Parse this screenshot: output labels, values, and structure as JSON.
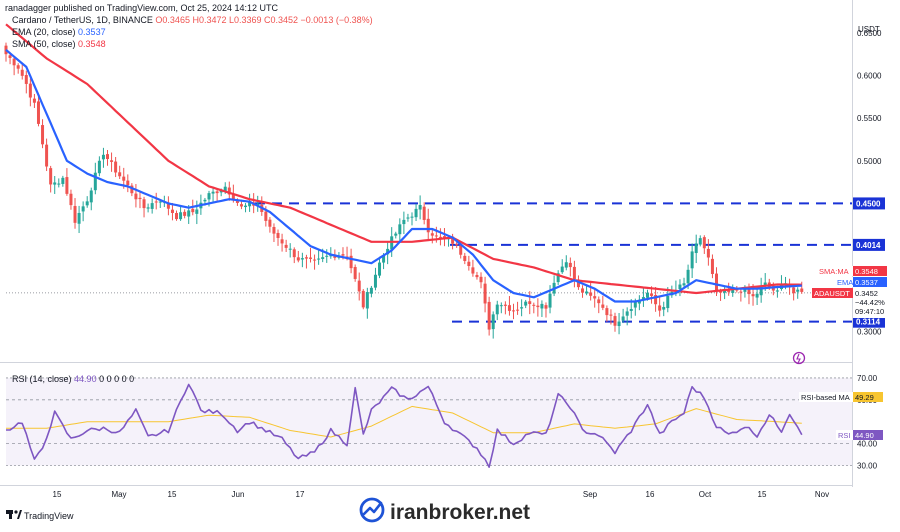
{
  "header": {
    "publisher": "ranadagger published on TradingView.com, Oct 25, 2024 14:12 UTC",
    "symbol": "Cardano / TetherUS, 1D, BINANCE",
    "ohlc": "O0.3465 H0.3472 L0.3369 C0.3452 −0.0013 (−0.38%)",
    "currency": "USDT"
  },
  "legend": {
    "ema_label": "EMA (20, close)",
    "ema_value": "0.3537",
    "sma_label": "SMA (50, close)",
    "sma_value": "0.3548",
    "rsi_label": "RSI (14, close)",
    "rsi_value": "44.90",
    "rsi_extra": "0 0 0 0 0"
  },
  "price_axis": {
    "ticks": [
      "0.6500",
      "0.6000",
      "0.5500",
      "0.5000",
      "0.3000"
    ]
  },
  "levels": [
    {
      "label": "0.4500",
      "value": 0.45
    },
    {
      "label": "0.4014",
      "value": 0.4014
    },
    {
      "label": "0.3114",
      "value": 0.3114
    }
  ],
  "tags": {
    "sma_name": "SMA:MA",
    "sma_val": "0.3548",
    "ema_name": "EMA",
    "ema_val": "0.3537",
    "pair": "ADAUSDT",
    "price": "0.3452",
    "pct": "−44.42%",
    "timer": "09:47:10"
  },
  "rsi_axis": {
    "ticks": [
      "70.00",
      "60.00",
      "40.00",
      "30.00"
    ]
  },
  "rsi_tags": {
    "ma_name": "RSI-based MA",
    "ma_val": "49.29",
    "rsi_name": "RSI",
    "rsi_val": "44.90"
  },
  "time_axis": [
    "15",
    "May",
    "15",
    "Jun",
    "17",
    "Sep",
    "16",
    "Oct",
    "15",
    "Nov"
  ],
  "footer": {
    "tv_brand": "TradingView",
    "watermark": "iranbroker.net"
  },
  "colors": {
    "up": "#26a69a",
    "down": "#ef5350",
    "ema": "#2962ff",
    "sma": "#f23645",
    "level": "#1a33d6",
    "rsi": "#7e57c2",
    "rsi_ma": "#f7c530"
  },
  "chart_data": [
    {
      "type": "candlestick",
      "title": "Cardano / TetherUS, 1D, BINANCE",
      "ylim": [
        0.27,
        0.665
      ],
      "close_anchors": [
        [
          0,
          0.625
        ],
        [
          3,
          0.61
        ],
        [
          5,
          0.59
        ],
        [
          7,
          0.565
        ],
        [
          9,
          0.52
        ],
        [
          11,
          0.47
        ],
        [
          14,
          0.48
        ],
        [
          17,
          0.43
        ],
        [
          20,
          0.455
        ],
        [
          24,
          0.51
        ],
        [
          26,
          0.495
        ],
        [
          30,
          0.47
        ],
        [
          34,
          0.445
        ],
        [
          38,
          0.455
        ],
        [
          42,
          0.435
        ],
        [
          46,
          0.44
        ],
        [
          50,
          0.46
        ],
        [
          54,
          0.47
        ],
        [
          58,
          0.445
        ],
        [
          62,
          0.45
        ],
        [
          65,
          0.42
        ],
        [
          69,
          0.4
        ],
        [
          72,
          0.385
        ],
        [
          76,
          0.38
        ],
        [
          80,
          0.39
        ],
        [
          84,
          0.39
        ],
        [
          88,
          0.33
        ],
        [
          92,
          0.38
        ],
        [
          94,
          0.4
        ],
        [
          98,
          0.43
        ],
        [
          102,
          0.445
        ],
        [
          104,
          0.42
        ],
        [
          106,
          0.41
        ],
        [
          110,
          0.405
        ],
        [
          114,
          0.38
        ],
        [
          117,
          0.355
        ],
        [
          119,
          0.305
        ],
        [
          121,
          0.335
        ],
        [
          125,
          0.325
        ],
        [
          129,
          0.335
        ],
        [
          133,
          0.33
        ],
        [
          135,
          0.36
        ],
        [
          138,
          0.385
        ],
        [
          141,
          0.35
        ],
        [
          144,
          0.34
        ],
        [
          146,
          0.335
        ],
        [
          150,
          0.31
        ],
        [
          154,
          0.33
        ],
        [
          158,
          0.345
        ],
        [
          161,
          0.325
        ],
        [
          164,
          0.345
        ],
        [
          167,
          0.355
        ],
        [
          169,
          0.39
        ],
        [
          171,
          0.41
        ],
        [
          173,
          0.385
        ],
        [
          175,
          0.345
        ],
        [
          178,
          0.345
        ],
        [
          181,
          0.35
        ],
        [
          184,
          0.34
        ],
        [
          187,
          0.355
        ],
        [
          190,
          0.345
        ],
        [
          192,
          0.36
        ],
        [
          194,
          0.345
        ],
        [
          196,
          0.345
        ]
      ],
      "ema_anchors": [
        [
          0,
          0.63
        ],
        [
          5,
          0.61
        ],
        [
          10,
          0.555
        ],
        [
          15,
          0.5
        ],
        [
          20,
          0.485
        ],
        [
          25,
          0.475
        ],
        [
          30,
          0.47
        ],
        [
          35,
          0.46
        ],
        [
          40,
          0.45
        ],
        [
          45,
          0.445
        ],
        [
          50,
          0.45
        ],
        [
          55,
          0.455
        ],
        [
          60,
          0.452
        ],
        [
          65,
          0.44
        ],
        [
          70,
          0.42
        ],
        [
          75,
          0.4
        ],
        [
          80,
          0.39
        ],
        [
          85,
          0.385
        ],
        [
          90,
          0.38
        ],
        [
          95,
          0.395
        ],
        [
          100,
          0.42
        ],
        [
          105,
          0.42
        ],
        [
          110,
          0.41
        ],
        [
          115,
          0.39
        ],
        [
          120,
          0.36
        ],
        [
          125,
          0.345
        ],
        [
          130,
          0.34
        ],
        [
          135,
          0.35
        ],
        [
          140,
          0.36
        ],
        [
          145,
          0.35
        ],
        [
          150,
          0.335
        ],
        [
          155,
          0.335
        ],
        [
          160,
          0.34
        ],
        [
          165,
          0.345
        ],
        [
          170,
          0.36
        ],
        [
          175,
          0.355
        ],
        [
          180,
          0.35
        ],
        [
          185,
          0.35
        ],
        [
          190,
          0.352
        ],
        [
          196,
          0.3537
        ]
      ],
      "sma_anchors": [
        [
          0,
          0.66
        ],
        [
          5,
          0.64
        ],
        [
          10,
          0.62
        ],
        [
          20,
          0.59
        ],
        [
          30,
          0.545
        ],
        [
          40,
          0.5
        ],
        [
          50,
          0.47
        ],
        [
          60,
          0.455
        ],
        [
          70,
          0.445
        ],
        [
          80,
          0.425
        ],
        [
          90,
          0.405
        ],
        [
          100,
          0.405
        ],
        [
          110,
          0.41
        ],
        [
          120,
          0.385
        ],
        [
          130,
          0.375
        ],
        [
          140,
          0.36
        ],
        [
          150,
          0.355
        ],
        [
          160,
          0.35
        ],
        [
          170,
          0.345
        ],
        [
          180,
          0.35
        ],
        [
          190,
          0.355
        ],
        [
          196,
          0.3548
        ]
      ]
    },
    {
      "type": "line",
      "title": "RSI (14, close)",
      "ylim": [
        22,
        75
      ],
      "levels": [
        70,
        60,
        40,
        30
      ],
      "rsi_anchors": [
        [
          0,
          46
        ],
        [
          4,
          50
        ],
        [
          7,
          32
        ],
        [
          9,
          38
        ],
        [
          12,
          54
        ],
        [
          16,
          42
        ],
        [
          20,
          46
        ],
        [
          24,
          47
        ],
        [
          28,
          45
        ],
        [
          32,
          55
        ],
        [
          35,
          43
        ],
        [
          40,
          46
        ],
        [
          45,
          68
        ],
        [
          48,
          55
        ],
        [
          53,
          54
        ],
        [
          57,
          46
        ],
        [
          60,
          50
        ],
        [
          64,
          46
        ],
        [
          68,
          42
        ],
        [
          72,
          33
        ],
        [
          76,
          36
        ],
        [
          80,
          46
        ],
        [
          84,
          40
        ],
        [
          86,
          65
        ],
        [
          88,
          44
        ],
        [
          90,
          55
        ],
        [
          95,
          65
        ],
        [
          99,
          60
        ],
        [
          104,
          66
        ],
        [
          108,
          50
        ],
        [
          112,
          44
        ],
        [
          116,
          38
        ],
        [
          119,
          30
        ],
        [
          121,
          46
        ],
        [
          125,
          40
        ],
        [
          129,
          45
        ],
        [
          133,
          44
        ],
        [
          136,
          62
        ],
        [
          139,
          57
        ],
        [
          142,
          46
        ],
        [
          146,
          44
        ],
        [
          150,
          36
        ],
        [
          154,
          46
        ],
        [
          158,
          58
        ],
        [
          161,
          44
        ],
        [
          164,
          50
        ],
        [
          167,
          54
        ],
        [
          169,
          66
        ],
        [
          172,
          61
        ],
        [
          175,
          48
        ],
        [
          178,
          44
        ],
        [
          182,
          48
        ],
        [
          185,
          44
        ],
        [
          188,
          53
        ],
        [
          191,
          46
        ],
        [
          193,
          54
        ],
        [
          196,
          44.9
        ]
      ],
      "ma_anchors": [
        [
          0,
          47
        ],
        [
          10,
          47
        ],
        [
          20,
          50
        ],
        [
          30,
          50
        ],
        [
          40,
          50
        ],
        [
          50,
          53
        ],
        [
          60,
          52
        ],
        [
          70,
          46
        ],
        [
          80,
          43
        ],
        [
          90,
          48
        ],
        [
          100,
          57
        ],
        [
          110,
          54
        ],
        [
          120,
          45
        ],
        [
          130,
          45
        ],
        [
          140,
          49
        ],
        [
          150,
          47
        ],
        [
          160,
          49
        ],
        [
          170,
          56
        ],
        [
          180,
          51
        ],
        [
          190,
          50
        ],
        [
          196,
          49.29
        ]
      ]
    }
  ]
}
